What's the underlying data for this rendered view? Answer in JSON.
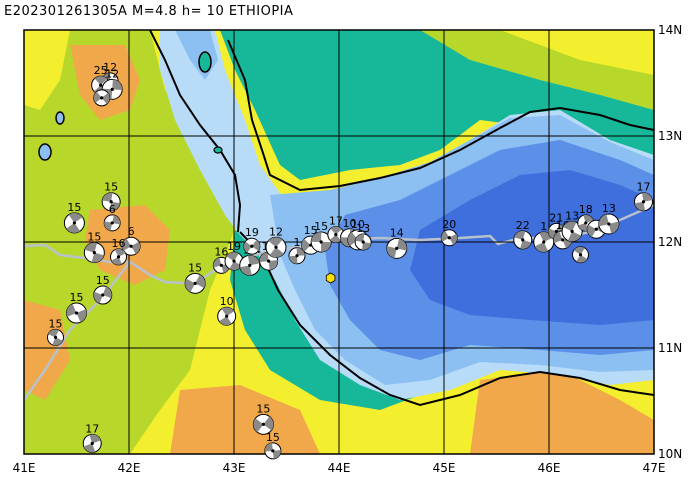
{
  "title": "E202301261305A  M=4.8  h=  10  ETHIOPIA",
  "axes": {
    "lon_ticks": [
      "41E",
      "42E",
      "43E",
      "44E",
      "45E",
      "46E",
      "47E"
    ],
    "lat_ticks": [
      "14N",
      "13N",
      "12N",
      "11N",
      "10N"
    ],
    "lon_range": [
      41,
      47
    ],
    "lat_range": [
      10,
      14
    ]
  },
  "colors": {
    "deep_sea": "#3f6fdc",
    "mid_sea": "#5b8fe8",
    "shallow_sea": "#8cc0f2",
    "coast_sea": "#b8dcf7",
    "lowland": "#17b89a",
    "plain": "#f3ef2e",
    "plateau": "#b7d82b",
    "highland": "#f1a84a",
    "grid": "#000000",
    "plate_boundary": "#b9c2cc",
    "epicenter": "#ffe000"
  },
  "epicenter": {
    "lon": 43.92,
    "lat": 11.66,
    "color": "#ffe000"
  },
  "events": [
    {
      "lon": 41.82,
      "lat": 13.52,
      "label": "12"
    },
    {
      "lon": 41.73,
      "lat": 13.48,
      "label": "25"
    },
    {
      "lon": 41.84,
      "lat": 13.44,
      "label": "12"
    },
    {
      "lon": 41.74,
      "lat": 13.36,
      "label": ""
    },
    {
      "lon": 41.83,
      "lat": 12.38,
      "label": "15"
    },
    {
      "lon": 41.48,
      "lat": 12.18,
      "label": "15"
    },
    {
      "lon": 41.84,
      "lat": 12.18,
      "label": "6"
    },
    {
      "lon": 42.02,
      "lat": 11.96,
      "label": "6"
    },
    {
      "lon": 41.67,
      "lat": 11.9,
      "label": "15"
    },
    {
      "lon": 41.9,
      "lat": 11.86,
      "label": "16"
    },
    {
      "lon": 41.75,
      "lat": 11.5,
      "label": "15"
    },
    {
      "lon": 41.5,
      "lat": 11.33,
      "label": "15"
    },
    {
      "lon": 41.3,
      "lat": 11.1,
      "label": "15"
    },
    {
      "lon": 41.65,
      "lat": 10.1,
      "label": "17"
    },
    {
      "lon": 42.63,
      "lat": 11.61,
      "label": "15"
    },
    {
      "lon": 42.88,
      "lat": 11.78,
      "label": "16"
    },
    {
      "lon": 43.0,
      "lat": 11.82,
      "label": "19"
    },
    {
      "lon": 43.15,
      "lat": 11.78,
      "label": "13"
    },
    {
      "lon": 43.17,
      "lat": 11.96,
      "label": "19"
    },
    {
      "lon": 43.33,
      "lat": 11.82,
      "label": "14"
    },
    {
      "lon": 43.4,
      "lat": 11.95,
      "label": "12"
    },
    {
      "lon": 43.6,
      "lat": 11.87,
      "label": "1"
    },
    {
      "lon": 43.73,
      "lat": 11.97,
      "label": "15"
    },
    {
      "lon": 43.83,
      "lat": 12.0,
      "label": "15"
    },
    {
      "lon": 43.97,
      "lat": 12.07,
      "label": "17"
    },
    {
      "lon": 44.1,
      "lat": 12.04,
      "label": "10"
    },
    {
      "lon": 44.18,
      "lat": 12.02,
      "label": "10"
    },
    {
      "lon": 44.23,
      "lat": 12.0,
      "label": "13"
    },
    {
      "lon": 42.93,
      "lat": 11.3,
      "label": "10"
    },
    {
      "lon": 44.55,
      "lat": 11.94,
      "label": "14"
    },
    {
      "lon": 45.05,
      "lat": 12.04,
      "label": "20"
    },
    {
      "lon": 45.75,
      "lat": 12.02,
      "label": "22"
    },
    {
      "lon": 45.95,
      "lat": 12.0,
      "label": "1"
    },
    {
      "lon": 46.07,
      "lat": 12.1,
      "label": "21"
    },
    {
      "lon": 46.13,
      "lat": 12.02,
      "label": "16"
    },
    {
      "lon": 46.22,
      "lat": 12.1,
      "label": "13"
    },
    {
      "lon": 46.35,
      "lat": 12.18,
      "label": "18"
    },
    {
      "lon": 46.45,
      "lat": 12.12,
      "label": ""
    },
    {
      "lon": 46.57,
      "lat": 12.17,
      "label": "13"
    },
    {
      "lon": 46.3,
      "lat": 11.88,
      "label": ""
    },
    {
      "lon": 46.9,
      "lat": 12.38,
      "label": "17"
    },
    {
      "lon": 43.28,
      "lat": 10.28,
      "label": "15"
    },
    {
      "lon": 43.37,
      "lat": 10.03,
      "label": "15"
    }
  ]
}
